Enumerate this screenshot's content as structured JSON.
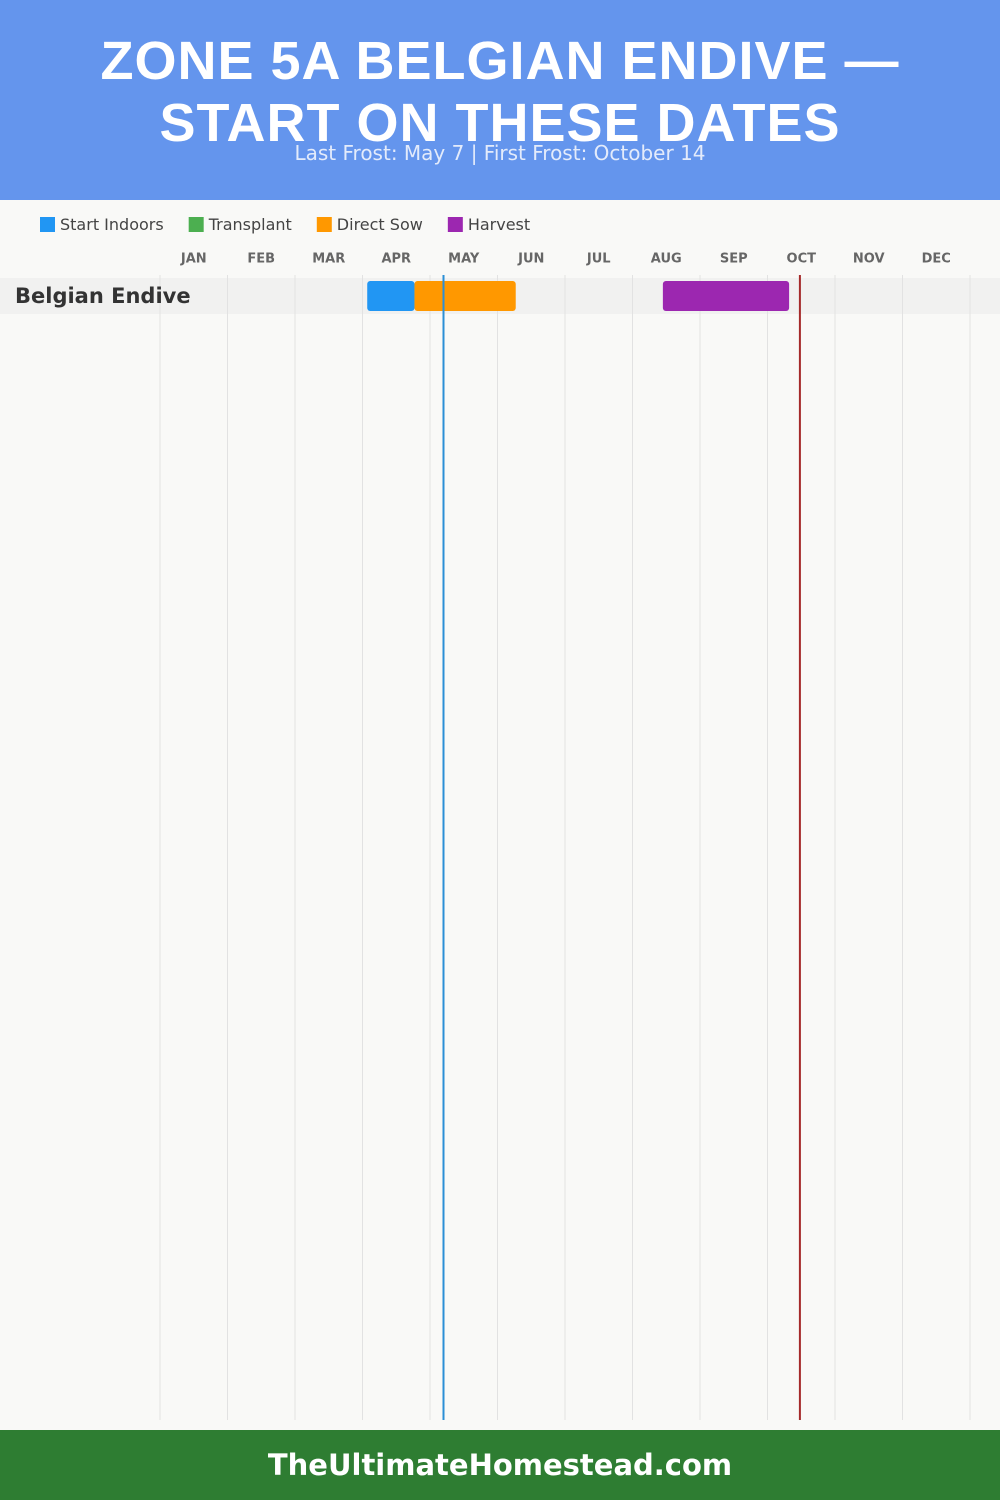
{
  "chart_data": {
    "type": "gantt",
    "title": "ZONE 5A BELGIAN ENDIVE — START ON THESE DATES",
    "subtitle": "Last Frost: May 7 | First Frost: October 14",
    "months": [
      "JAN",
      "FEB",
      "MAR",
      "APR",
      "MAY",
      "JUN",
      "JUL",
      "AUG",
      "SEP",
      "OCT",
      "NOV",
      "DEC"
    ],
    "xlim": [
      0,
      12
    ],
    "categories": [
      "Belgian Endive"
    ],
    "series": [
      {
        "name": "Start Indoors",
        "color": "#2196f3",
        "values": [
          [
            3.07,
            3.77
          ]
        ]
      },
      {
        "name": "Transplant",
        "color": "#4caf50",
        "values": [
          null
        ]
      },
      {
        "name": "Direct Sow",
        "color": "#ff9800",
        "values": [
          [
            3.77,
            5.27
          ]
        ]
      },
      {
        "name": "Harvest",
        "color": "#9c27b0",
        "values": [
          [
            7.45,
            9.32
          ]
        ]
      }
    ],
    "frost_lines": [
      {
        "value": 4.2,
        "color": "#2b8fd6"
      },
      {
        "value": 9.48,
        "color": "#a52a2a"
      }
    ],
    "footer": "TheUltimateHomestead.com"
  }
}
